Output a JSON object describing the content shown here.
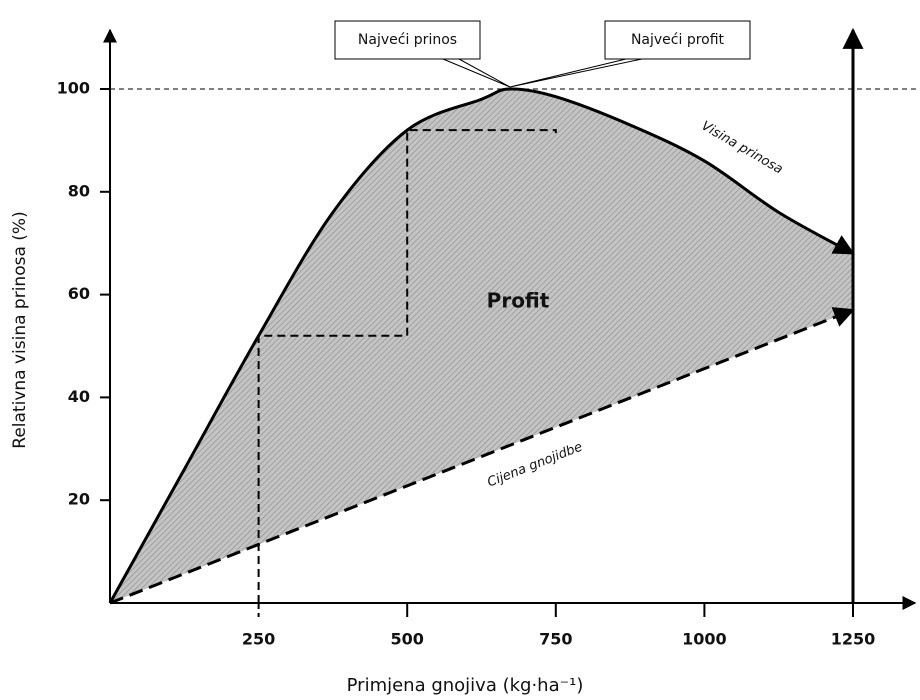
{
  "chart_data": {
    "type": "line",
    "x_label": "Primjena gnojiva (kg·ha⁻¹)",
    "y_label": "Relativna visina prinosa (%)",
    "series": [
      {
        "name": "Visina prinosa",
        "color": "#000000",
        "x": [
          0,
          125,
          250,
          375,
          500,
          625,
          673,
          750,
          875,
          1000,
          1125,
          1250
        ],
        "values": [
          0,
          26,
          52,
          76,
          92,
          98,
          100,
          98.5,
          93,
          86,
          76,
          68
        ]
      },
      {
        "name": "Cijena gnojidbe",
        "color": "#000000",
        "dashed": true,
        "x": [
          0,
          1250
        ],
        "values": [
          0,
          57
        ]
      }
    ],
    "area_label": "Profit",
    "annotations": [
      "Najveći prinos",
      "Najveći profit"
    ],
    "xlim": [
      0,
      1250
    ],
    "ylim": [
      0,
      100
    ],
    "xticks": [
      250,
      500,
      750,
      1000,
      1250
    ],
    "yticks": [
      20,
      40,
      60,
      80,
      100
    ]
  }
}
